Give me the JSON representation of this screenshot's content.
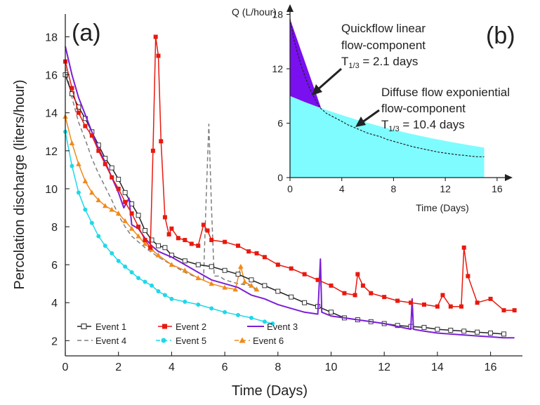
{
  "chart_data": [
    {
      "id": "a",
      "panel_label": "(a)",
      "type": "line",
      "xlabel": "Time (Days)",
      "ylabel": "Percolation discharge (liters/hour)",
      "xlim": [
        0,
        17.2
      ],
      "ylim": [
        1.2,
        19.2
      ],
      "xticks": [
        0,
        2,
        4,
        6,
        8,
        10,
        12,
        14,
        16
      ],
      "yticks": [
        2,
        4,
        6,
        8,
        10,
        12,
        14,
        16,
        18
      ],
      "grid": false,
      "legend_position": "bottom-left",
      "series": [
        {
          "name": "Event 1",
          "color": "#222222",
          "dash": "",
          "marker": "square-open",
          "points": [
            [
              0,
              16.0
            ],
            [
              0.25,
              15.0
            ],
            [
              0.5,
              14.3
            ],
            [
              0.75,
              13.7
            ],
            [
              1,
              13.0
            ],
            [
              1.25,
              12.3
            ],
            [
              1.5,
              11.6
            ],
            [
              1.75,
              11.1
            ],
            [
              2,
              10.5
            ],
            [
              2.25,
              9.8
            ],
            [
              2.5,
              9.2
            ],
            [
              2.75,
              8.6
            ],
            [
              3,
              7.8
            ],
            [
              3.25,
              7.3
            ],
            [
              3.5,
              7.0
            ],
            [
              3.75,
              6.9
            ],
            [
              4,
              6.5
            ],
            [
              4.5,
              6.2
            ],
            [
              5,
              6.0
            ],
            [
              5.5,
              5.9
            ],
            [
              6,
              5.7
            ],
            [
              6.5,
              5.5
            ],
            [
              7,
              5.2
            ],
            [
              7.5,
              4.9
            ],
            [
              8,
              4.6
            ],
            [
              8.5,
              4.3
            ],
            [
              9,
              4.0
            ],
            [
              9.5,
              3.8
            ],
            [
              10,
              3.5
            ],
            [
              10.5,
              3.2
            ],
            [
              11,
              3.1
            ],
            [
              11.5,
              3.0
            ],
            [
              12,
              2.9
            ],
            [
              12.5,
              2.8
            ],
            [
              13,
              2.75
            ],
            [
              13.5,
              2.7
            ],
            [
              14,
              2.6
            ],
            [
              14.5,
              2.55
            ],
            [
              15,
              2.5
            ],
            [
              15.5,
              2.45
            ],
            [
              16,
              2.4
            ],
            [
              16.5,
              2.35
            ]
          ]
        },
        {
          "name": "Event 2",
          "color": "#e8190f",
          "dash": "",
          "marker": "square-filled",
          "points": [
            [
              0,
              16.7
            ],
            [
              0.25,
              15.3
            ],
            [
              0.5,
              14.0
            ],
            [
              0.75,
              13.3
            ],
            [
              1,
              12.8
            ],
            [
              1.25,
              12.0
            ],
            [
              1.5,
              11.3
            ],
            [
              1.75,
              10.6
            ],
            [
              2,
              10.0
            ],
            [
              2.25,
              9.3
            ],
            [
              2.5,
              8.7
            ],
            [
              2.75,
              8.0
            ],
            [
              3,
              7.3
            ],
            [
              3.2,
              6.9
            ],
            [
              3.3,
              12.0
            ],
            [
              3.4,
              18.0
            ],
            [
              3.5,
              17.0
            ],
            [
              3.6,
              12.5
            ],
            [
              3.75,
              8.5
            ],
            [
              3.9,
              7.6
            ],
            [
              4,
              7.9
            ],
            [
              4.25,
              7.4
            ],
            [
              4.5,
              7.3
            ],
            [
              4.75,
              7.1
            ],
            [
              5,
              7.0
            ],
            [
              5.2,
              8.1
            ],
            [
              5.35,
              7.8
            ],
            [
              5.5,
              7.3
            ],
            [
              6,
              7.2
            ],
            [
              6.5,
              7.0
            ],
            [
              6.9,
              6.7
            ],
            [
              7.2,
              6.6
            ],
            [
              7.5,
              6.4
            ],
            [
              8,
              6.0
            ],
            [
              8.5,
              5.8
            ],
            [
              9,
              5.5
            ],
            [
              9.5,
              5.2
            ],
            [
              10,
              4.9
            ],
            [
              10.5,
              4.5
            ],
            [
              10.9,
              4.4
            ],
            [
              11,
              5.5
            ],
            [
              11.2,
              4.9
            ],
            [
              11.5,
              4.5
            ],
            [
              12,
              4.3
            ],
            [
              12.5,
              4.1
            ],
            [
              13,
              4.0
            ],
            [
              13.5,
              3.9
            ],
            [
              14,
              3.8
            ],
            [
              14.2,
              4.4
            ],
            [
              14.5,
              3.8
            ],
            [
              14.9,
              3.8
            ],
            [
              15,
              6.9
            ],
            [
              15.15,
              5.4
            ],
            [
              15.5,
              4.0
            ],
            [
              16,
              4.2
            ],
            [
              16.5,
              3.6
            ],
            [
              16.9,
              3.6
            ]
          ]
        },
        {
          "name": "Event 3",
          "color": "#7a1fd6",
          "dash": "",
          "marker": "",
          "points": [
            [
              0,
              17.5
            ],
            [
              0.25,
              16.0
            ],
            [
              0.5,
              14.8
            ],
            [
              0.75,
              13.9
            ],
            [
              1,
              13.0
            ],
            [
              1.25,
              12.1
            ],
            [
              1.5,
              11.4
            ],
            [
              1.75,
              10.6
            ],
            [
              2,
              9.8
            ],
            [
              2.2,
              9.0
            ],
            [
              2.4,
              9.5
            ],
            [
              2.5,
              8.1
            ],
            [
              2.75,
              7.9
            ],
            [
              3,
              7.4
            ],
            [
              3.25,
              7.0
            ],
            [
              3.5,
              6.7
            ],
            [
              4,
              6.4
            ],
            [
              4.5,
              6.0
            ],
            [
              5,
              5.6
            ],
            [
              5.5,
              5.2
            ],
            [
              6,
              5.0
            ],
            [
              6.5,
              4.8
            ],
            [
              7,
              4.4
            ],
            [
              7.5,
              4.2
            ],
            [
              8,
              3.9
            ],
            [
              8.5,
              3.7
            ],
            [
              9,
              3.5
            ],
            [
              9.5,
              3.4
            ],
            [
              9.6,
              6.3
            ],
            [
              9.65,
              3.5
            ],
            [
              10,
              3.3
            ],
            [
              10.5,
              3.2
            ],
            [
              11,
              3.1
            ],
            [
              11.5,
              3.0
            ],
            [
              12,
              2.9
            ],
            [
              12.5,
              2.75
            ],
            [
              13,
              2.6
            ],
            [
              13.05,
              4.2
            ],
            [
              13.1,
              2.6
            ],
            [
              13.5,
              2.5
            ],
            [
              14,
              2.4
            ],
            [
              14.5,
              2.35
            ],
            [
              15,
              2.3
            ],
            [
              15.5,
              2.25
            ],
            [
              16,
              2.2
            ],
            [
              16.5,
              2.15
            ],
            [
              16.9,
              2.15
            ]
          ]
        },
        {
          "name": "Event 4",
          "color": "#7f7f7f",
          "dash": "6 4",
          "marker": "",
          "points": [
            [
              0,
              16.4
            ],
            [
              0.25,
              14.8
            ],
            [
              0.5,
              13.5
            ],
            [
              0.75,
              12.6
            ],
            [
              1,
              11.6
            ],
            [
              1.25,
              10.8
            ],
            [
              1.5,
              10.1
            ],
            [
              1.75,
              9.4
            ],
            [
              2,
              8.6
            ],
            [
              2.25,
              8.0
            ],
            [
              2.5,
              7.5
            ],
            [
              2.75,
              7.2
            ],
            [
              3,
              6.9
            ],
            [
              3.5,
              6.4
            ],
            [
              4,
              6.0
            ],
            [
              4.5,
              5.6
            ],
            [
              5,
              5.3
            ],
            [
              5.2,
              5.2
            ],
            [
              5.3,
              9.5
            ],
            [
              5.4,
              13.4
            ],
            [
              5.5,
              9.0
            ],
            [
              5.6,
              5.4
            ],
            [
              5.8,
              5.4
            ],
            [
              6,
              5.2
            ],
            [
              6.5,
              5.0
            ],
            [
              7,
              4.9
            ],
            [
              7.2,
              4.6
            ]
          ]
        },
        {
          "name": "Event 5",
          "color": "#1fd8e8",
          "dash": "",
          "marker": "circle-filled",
          "points": [
            [
              0,
              13.0
            ],
            [
              0.25,
              11.2
            ],
            [
              0.5,
              9.8
            ],
            [
              0.75,
              8.9
            ],
            [
              1,
              8.2
            ],
            [
              1.25,
              7.5
            ],
            [
              1.5,
              7.0
            ],
            [
              1.75,
              6.6
            ],
            [
              2,
              6.2
            ],
            [
              2.25,
              5.9
            ],
            [
              2.5,
              5.6
            ],
            [
              2.75,
              5.3
            ],
            [
              3,
              5.1
            ],
            [
              3.25,
              4.9
            ],
            [
              3.5,
              4.6
            ],
            [
              3.75,
              4.4
            ],
            [
              4,
              4.2
            ],
            [
              4.5,
              4.05
            ],
            [
              5,
              3.9
            ],
            [
              5.5,
              3.7
            ],
            [
              6,
              3.5
            ],
            [
              6.5,
              3.35
            ],
            [
              7,
              3.2
            ],
            [
              7.5,
              3.0
            ],
            [
              7.8,
              2.9
            ]
          ]
        },
        {
          "name": "Event 6",
          "color": "#f08a19",
          "dash": "",
          "marker": "triangle-filled",
          "points": [
            [
              0,
              13.8
            ],
            [
              0.25,
              12.4
            ],
            [
              0.5,
              11.3
            ],
            [
              0.75,
              10.4
            ],
            [
              1,
              9.8
            ],
            [
              1.25,
              9.4
            ],
            [
              1.5,
              9.1
            ],
            [
              1.75,
              8.9
            ],
            [
              2,
              8.7
            ],
            [
              2.25,
              8.3
            ],
            [
              2.5,
              7.9
            ],
            [
              2.75,
              7.5
            ],
            [
              3,
              7.1
            ],
            [
              3.25,
              6.8
            ],
            [
              3.5,
              6.5
            ],
            [
              4,
              6.0
            ],
            [
              4.5,
              5.7
            ],
            [
              5,
              5.3
            ],
            [
              5.5,
              5.0
            ],
            [
              6,
              4.8
            ],
            [
              6.4,
              4.7
            ],
            [
              6.6,
              5.9
            ],
            [
              6.75,
              5.1
            ],
            [
              7,
              4.9
            ],
            [
              7.2,
              4.7
            ]
          ]
        }
      ]
    },
    {
      "id": "b",
      "panel_label": "(b)",
      "type": "area",
      "xlabel": "Time (Days)",
      "ylabel": "Q (L/hour)",
      "xlim": [
        0,
        17.2
      ],
      "ylim": [
        0,
        18.5
      ],
      "xticks": [
        0,
        4,
        8,
        12,
        16
      ],
      "yticks": [
        0,
        6,
        12,
        18
      ],
      "grid": false,
      "components": [
        {
          "name": "Quickflow linear flow-component",
          "color": "#7a0ff0",
          "formula": "linear",
          "start": 17.5,
          "end_day": 2.4
        },
        {
          "name": "Diffuse flow exponiential flow-component",
          "color": "#7ffcff",
          "formula": "exponential",
          "q0": 9.0,
          "half_life_days": 10.4
        }
      ],
      "observed_x_days": [
        0,
        0.3,
        0.6,
        0.9,
        1.2,
        1.5,
        1.8,
        2.1,
        2.4,
        2.8,
        3.2,
        3.6,
        4,
        4.5,
        5,
        5.5,
        6,
        6.5,
        7,
        7.5,
        8,
        8.5,
        9,
        9.5,
        10,
        10.5,
        11,
        11.5,
        12,
        12.5,
        13,
        13.5,
        14,
        14.5,
        15
      ],
      "observed_q": [
        17.5,
        15.3,
        13.6,
        12.2,
        11.0,
        9.9,
        9.0,
        8.2,
        7.6,
        7.1,
        6.8,
        6.5,
        6.2,
        5.8,
        5.5,
        5.2,
        4.9,
        4.7,
        4.5,
        4.2,
        4.0,
        3.8,
        3.6,
        3.4,
        3.25,
        3.1,
        2.95,
        2.8,
        2.7,
        2.6,
        2.5,
        2.45,
        2.35,
        2.3,
        2.3
      ],
      "annotations": [
        {
          "line1": "Quickflow linear",
          "line2": "flow-component",
          "line3_prefix": "T",
          "line3_sub": "1/3",
          "line3_rest": " = 2.1 days"
        },
        {
          "line1": "Diffuse flow exponiential",
          "line2": "flow-component",
          "line3_prefix": "T",
          "line3_sub": "1/3",
          "line3_rest": " = 10.4 days"
        }
      ]
    }
  ]
}
